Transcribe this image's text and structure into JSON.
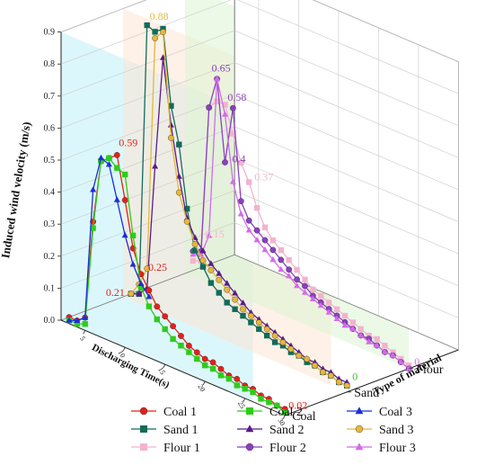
{
  "chart_data": {
    "type": "line",
    "projection": "3d",
    "title": "",
    "xlabel": "Discharging Time(s)",
    "ylabel": "Induced wind velocity (m/s)",
    "zlabel": "Type of material",
    "x_ticks": [
      "5",
      "10",
      "15",
      "20",
      "25",
      "30"
    ],
    "y_ticks": [
      "0.0",
      "0.1",
      "0.2",
      "0.3",
      "0.4",
      "0.5",
      "0.6",
      "0.7",
      "0.8",
      "0.9"
    ],
    "z_categories": [
      "Coal",
      "Sand",
      "Flour"
    ],
    "xlim": [
      2,
      30
    ],
    "ylim": [
      0,
      0.9
    ],
    "grid": true,
    "legend_position": "bottom",
    "colors": {
      "coal_plane": "#bff0f7",
      "sand_plane": "#fde5d3",
      "flour_plane": "#dcf4d4"
    },
    "series": [
      {
        "name": "Coal 1",
        "material": 0,
        "color": "#e3201b",
        "marker": "circle",
        "x": [
          3,
          4,
          5,
          6,
          7,
          8,
          9,
          10,
          11,
          12,
          13,
          14,
          15,
          16,
          17,
          18,
          19,
          20,
          21,
          22,
          23,
          24,
          25,
          26,
          27,
          28,
          29,
          30
        ],
        "y": [
          0.02,
          0.02,
          0.04,
          0.35,
          0.55,
          0.57,
          0.59,
          0.46,
          0.32,
          0.25,
          0.21,
          0.17,
          0.15,
          0.13,
          0.11,
          0.09,
          0.08,
          0.07,
          0.07,
          0.06,
          0.05,
          0.05,
          0.04,
          0.04,
          0.03,
          0.03,
          0.02,
          0.02
        ]
      },
      {
        "name": "Coal 2",
        "material": 0,
        "color": "#2ecc1a",
        "marker": "square",
        "x": [
          3,
          4,
          5,
          6,
          7,
          8,
          9,
          10,
          11,
          12,
          13,
          14,
          15,
          16,
          17,
          18,
          19,
          20,
          21,
          22,
          23,
          24,
          25,
          26,
          27,
          28,
          29,
          30
        ],
        "y": [
          0.01,
          0.01,
          0.02,
          0.33,
          0.55,
          0.57,
          0.55,
          0.54,
          0.36,
          0.21,
          0.16,
          0.13,
          0.11,
          0.09,
          0.08,
          0.07,
          0.06,
          0.05,
          0.05,
          0.04,
          0.04,
          0.03,
          0.03,
          0.03,
          0.02,
          0.02,
          0.02,
          0.01
        ]
      },
      {
        "name": "Coal 3",
        "material": 0,
        "color": "#1c2fd6",
        "marker": "triangle",
        "x": [
          3,
          4,
          5,
          6,
          7,
          8,
          9,
          10,
          11,
          12,
          13
        ],
        "y": [
          0.01,
          0.02,
          0.04,
          0.45,
          0.56,
          0.55,
          0.45,
          0.35,
          0.27,
          0.22,
          0.19
        ]
      },
      {
        "name": "Sand 1",
        "material": 1,
        "color": "#136b5a",
        "marker": "square",
        "x": [
          3,
          4,
          5,
          6,
          7,
          8,
          9,
          10,
          11,
          12,
          13,
          14,
          15,
          16,
          17,
          18,
          19,
          20,
          21,
          22,
          23,
          24,
          25,
          26,
          27,
          28,
          29,
          30
        ],
        "y": [
          0.02,
          0.03,
          0.88,
          0.87,
          0.89,
          0.66,
          0.55,
          0.36,
          0.24,
          0.2,
          0.16,
          0.14,
          0.12,
          0.11,
          0.1,
          0.09,
          0.08,
          0.07,
          0.06,
          0.06,
          0.05,
          0.05,
          0.04,
          0.04,
          0.03,
          0.03,
          0.02,
          0.02
        ]
      },
      {
        "name": "Sand 2",
        "material": 1,
        "color": "#5b1a8a",
        "marker": "triangle",
        "x": [
          3,
          4,
          5,
          6,
          7,
          8,
          9,
          10,
          11,
          12,
          13,
          14,
          15,
          16,
          17,
          18,
          19,
          20,
          21,
          22,
          23,
          24,
          25,
          26,
          27,
          28,
          29,
          30
        ],
        "y": [
          0.02,
          0.03,
          0.06,
          0.45,
          0.8,
          0.6,
          0.45,
          0.33,
          0.28,
          0.25,
          0.22,
          0.2,
          0.18,
          0.16,
          0.14,
          0.12,
          0.11,
          0.1,
          0.09,
          0.08,
          0.07,
          0.06,
          0.05,
          0.05,
          0.04,
          0.04,
          0.03,
          0.03
        ]
      },
      {
        "name": "Sand 3",
        "material": 1,
        "color": "#e6b73a",
        "marker": "circle",
        "x": [
          3,
          4,
          5,
          6,
          7,
          8,
          9,
          10,
          11,
          12,
          13,
          14,
          15,
          16,
          17,
          18,
          19,
          20,
          21,
          22,
          23,
          24,
          25,
          26,
          27,
          28,
          29,
          30
        ],
        "y": [
          0.02,
          0.06,
          0.12,
          0.85,
          0.88,
          0.56,
          0.4,
          0.32,
          0.26,
          0.22,
          0.2,
          0.18,
          0.16,
          0.14,
          0.12,
          0.11,
          0.1,
          0.09,
          0.08,
          0.07,
          0.06,
          0.05,
          0.05,
          0.04,
          0.03,
          0.03,
          0.02,
          0.02
        ]
      },
      {
        "name": "Flour 1",
        "material": 2,
        "color": "#f2b3cf",
        "marker": "square",
        "x": [
          3,
          4,
          5,
          6,
          7,
          8,
          9,
          10,
          11,
          12,
          13,
          14,
          15,
          16,
          17,
          18,
          19,
          20,
          21,
          22,
          23,
          24,
          25,
          26,
          27,
          28,
          29,
          30
        ],
        "y": [
          0.05,
          0.06,
          0.55,
          0.58,
          0.58,
          0.5,
          0.42,
          0.37,
          0.3,
          0.25,
          0.22,
          0.2,
          0.18,
          0.16,
          0.14,
          0.12,
          0.11,
          0.1,
          0.09,
          0.08,
          0.07,
          0.06,
          0.05,
          0.05,
          0.04,
          0.03,
          0.02,
          0.01
        ]
      },
      {
        "name": "Flour 2",
        "material": 2,
        "color": "#8a3fc2",
        "marker": "circle",
        "x": [
          3,
          4,
          5,
          6,
          7,
          8,
          9,
          10,
          11,
          12,
          13,
          14,
          15,
          16,
          17,
          18,
          19,
          20,
          21,
          22,
          23,
          24,
          25,
          26,
          27,
          28,
          29,
          30
        ],
        "y": [
          0.08,
          0.09,
          0.55,
          0.65,
          0.4,
          0.58,
          0.3,
          0.25,
          0.23,
          0.21,
          0.19,
          0.17,
          0.15,
          0.13,
          0.12,
          0.1,
          0.09,
          0.08,
          0.07,
          0.06,
          0.05,
          0.04,
          0.04,
          0.03,
          0.02,
          0.02,
          0.01,
          0.0
        ]
      },
      {
        "name": "Flour 3",
        "material": 2,
        "color": "#d46be8",
        "marker": "triangle",
        "x": [
          3,
          4,
          5,
          6,
          7,
          8,
          9,
          10,
          11,
          12,
          13,
          14,
          15,
          16,
          17,
          18,
          19,
          20,
          21,
          22,
          23,
          24,
          25,
          26,
          27,
          28,
          29,
          30
        ],
        "y": [
          0.07,
          0.08,
          0.15,
          0.65,
          0.55,
          0.35,
          0.26,
          0.22,
          0.2,
          0.18,
          0.16,
          0.14,
          0.13,
          0.11,
          0.1,
          0.09,
          0.08,
          0.07,
          0.06,
          0.05,
          0.05,
          0.04,
          0.03,
          0.03,
          0.02,
          0.02,
          0.01,
          0.0
        ]
      }
    ],
    "annotations": [
      {
        "text": "0.59",
        "material": 0,
        "x": 9,
        "y": 0.59,
        "color": "#e3201b",
        "dx": 2,
        "dy": -10
      },
      {
        "text": "0.25",
        "material": 0,
        "x": 12,
        "y": 0.25,
        "color": "#e3201b",
        "dx": 8,
        "dy": -4
      },
      {
        "text": "0.21",
        "material": 0,
        "x": 13,
        "y": 0.21,
        "color": "#e3201b",
        "dx": -48,
        "dy": 6
      },
      {
        "text": "0.02",
        "material": 0,
        "x": 30,
        "y": 0.02,
        "color": "#e3201b",
        "dx": 4,
        "dy": 0
      },
      {
        "text": "0.88",
        "material": 1,
        "x": 6,
        "y": 0.88,
        "color": "#e6b73a",
        "dx": -6,
        "dy": -10
      },
      {
        "text": "0",
        "material": 1,
        "x": 30,
        "y": 0.02,
        "color": "#2ecc1a",
        "dx": 6,
        "dy": -6
      },
      {
        "text": "0.65",
        "material": 2,
        "x": 6,
        "y": 0.65,
        "color": "#8a3fc2",
        "dx": -6,
        "dy": -8
      },
      {
        "text": "0.58",
        "material": 2,
        "x": 8,
        "y": 0.58,
        "color": "#8a3fc2",
        "dx": -6,
        "dy": -8
      },
      {
        "text": "0.4",
        "material": 2,
        "x": 7,
        "y": 0.4,
        "color": "#8a3fc2",
        "dx": 8,
        "dy": 0
      },
      {
        "text": "0.37",
        "material": 2,
        "x": 10,
        "y": 0.37,
        "color": "#f2b3cf",
        "dx": 6,
        "dy": -2
      },
      {
        "text": "0.15",
        "material": 2,
        "x": 5,
        "y": 0.15,
        "color": "#f2b3cf",
        "dx": -4,
        "dy": 2
      },
      {
        "text": "0",
        "material": 2,
        "x": 30,
        "y": 0.0,
        "color": "#d46be8",
        "dx": 6,
        "dy": -4
      }
    ]
  }
}
